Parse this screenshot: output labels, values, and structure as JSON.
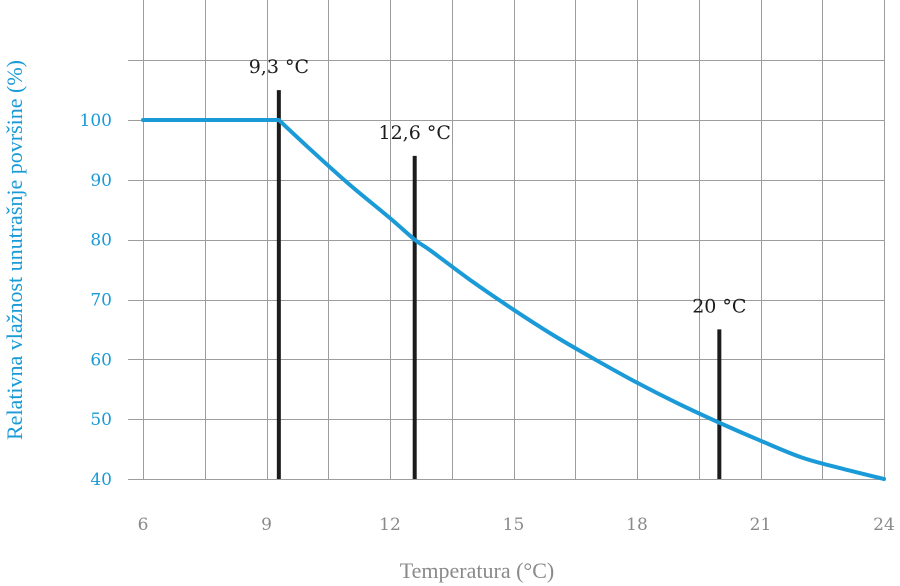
{
  "chart_data": {
    "type": "line",
    "xlabel": "Temperatura (°C)",
    "ylabel": "Relativna vlažnost unutrašnje površine (%)",
    "xlim": [
      6,
      24
    ],
    "ylim": [
      40,
      100
    ],
    "x_ticks": [
      "6",
      "9",
      "12",
      "15",
      "18",
      "21",
      "24"
    ],
    "y_ticks": [
      "40",
      "50",
      "60",
      "70",
      "80",
      "90",
      "100"
    ],
    "grid": true,
    "colors": {
      "curve": "#1a9ad6",
      "markers": "#1c1c1c",
      "grid": "#9d9d9d"
    },
    "series": [
      {
        "color": "#1a9ad6",
        "x": [
          6,
          9.3,
          10,
          11,
          12,
          12.6,
          13,
          14,
          15,
          16,
          17,
          18,
          19,
          20,
          21,
          22,
          23,
          24
        ],
        "y": [
          100,
          100,
          95.5,
          89.3,
          83.6,
          80.0,
          78.1,
          73.0,
          68.3,
          63.9,
          59.9,
          56.1,
          52.6,
          49.4,
          46.4,
          43.6,
          41.7,
          40.0
        ]
      }
    ],
    "markers": [
      {
        "x": 9.3,
        "label": "9,3 °C",
        "y_top": 105
      },
      {
        "x": 12.6,
        "label": "12,6 °C",
        "y_top": 94
      },
      {
        "x": 20,
        "label": "20 °C",
        "y_top": 65
      }
    ]
  }
}
